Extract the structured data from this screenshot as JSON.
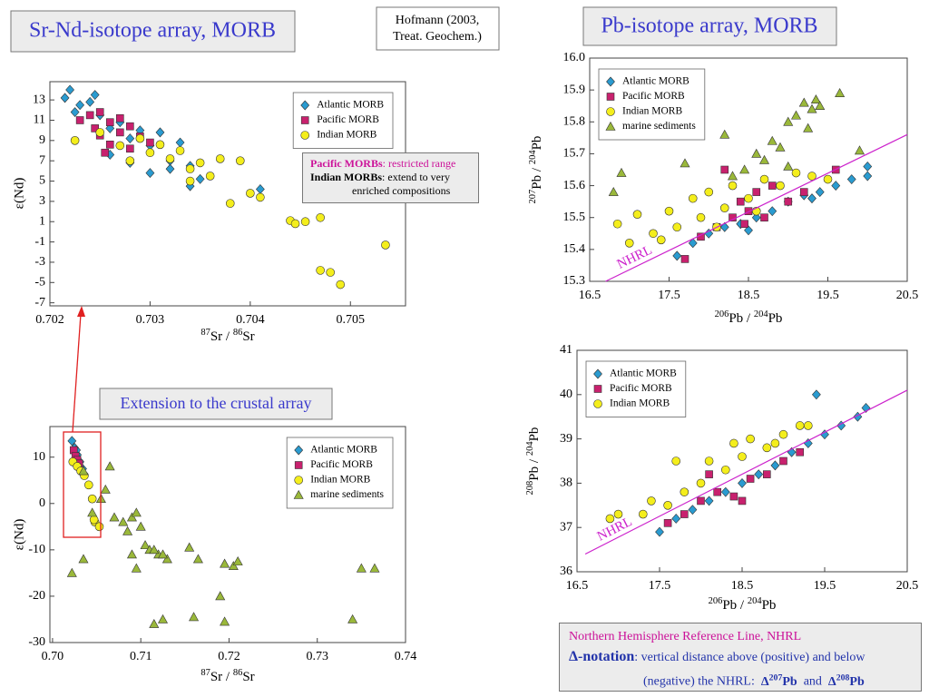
{
  "slide": {
    "title_left": "Sr-Nd-isotope array, MORB",
    "reference": [
      "Hofmann (2003,",
      "Treat. Geochem.)"
    ],
    "title_right": "Pb-isotope array, MORB",
    "crustal_title": "Extension to the crustal array",
    "annotation": {
      "pacific": [
        "Pacific MORBs",
        ": restricted range"
      ],
      "indian": [
        "Indian MORBs",
        ": extend to very",
        "enriched compositions"
      ]
    },
    "note": {
      "line1": "Northern Hemisphere Reference Line, NHRL",
      "delta": "Δ-notation",
      "line2": ": vertical distance above (positive) and below",
      "line3": "(negative) the NHRL:",
      "delta207": [
        "Δ",
        "207",
        "Pb"
      ],
      "and": "and",
      "delta208": [
        "Δ",
        "208",
        "Pb"
      ]
    }
  },
  "chart_data": [
    {
      "type": "scatter",
      "xlabel": [
        "87",
        "Sr / ",
        "86",
        "Sr"
      ],
      "ylabel": "ε(Nd)",
      "xlim": [
        0.702,
        0.70555
      ],
      "ylim": [
        -7.3,
        14.8
      ],
      "xticks": [
        0.702,
        0.703,
        0.704,
        0.705
      ],
      "yticks": [
        13,
        11,
        9,
        7,
        5,
        3,
        1,
        -1,
        -3,
        -5,
        -7
      ],
      "legend": "upper right",
      "series": [
        {
          "name": "Atlantic MORB",
          "color": "#2a9bd0",
          "marker": "diamond",
          "x": [
            0.70215,
            0.7022,
            0.7023,
            0.70225,
            0.7024,
            0.7025,
            0.7026,
            0.7027,
            0.7028,
            0.7029,
            0.703,
            0.7031,
            0.7032,
            0.7033,
            0.7034,
            0.7035,
            0.7026,
            0.7028,
            0.703,
            0.7032,
            0.7041,
            0.70245,
            0.7034
          ],
          "values": [
            13.2,
            14,
            12.5,
            11.8,
            12.8,
            11.5,
            10.2,
            10.8,
            9.2,
            10,
            8.5,
            9.8,
            7.0,
            8.8,
            6.5,
            5.2,
            7.6,
            6.8,
            5.8,
            6.2,
            4.2,
            13.5,
            4.5
          ]
        },
        {
          "name": "Pacific MORB",
          "color": "#c8216e",
          "marker": "square",
          "x": [
            0.7024,
            0.70245,
            0.7025,
            0.7025,
            0.7026,
            0.7026,
            0.7027,
            0.7027,
            0.7028,
            0.7028,
            0.7029,
            0.703,
            0.7023,
            0.70255
          ],
          "values": [
            11.5,
            10.2,
            11.8,
            9.5,
            10.8,
            8.6,
            11.2,
            9.8,
            10.4,
            8.2,
            9.4,
            8.8,
            11.0,
            7.8
          ]
        },
        {
          "name": "Indian MORB",
          "color": "#f4ee1c",
          "marker": "circle",
          "x": [
            0.70225,
            0.7025,
            0.7027,
            0.7029,
            0.703,
            0.7031,
            0.7032,
            0.7033,
            0.7034,
            0.7035,
            0.7036,
            0.7037,
            0.7038,
            0.7039,
            0.704,
            0.7041,
            0.7044,
            0.70445,
            0.70455,
            0.7047,
            0.7047,
            0.7048,
            0.7049,
            0.70535,
            0.7028,
            0.7034
          ],
          "values": [
            9.0,
            9.8,
            8.5,
            9.2,
            7.8,
            8.6,
            7.2,
            8.0,
            6.2,
            6.8,
            5.5,
            7.2,
            2.8,
            7.0,
            3.8,
            3.4,
            1.1,
            0.8,
            1.0,
            1.4,
            -3.8,
            -4.0,
            -5.2,
            -1.3,
            7.0,
            5.0
          ]
        }
      ]
    },
    {
      "type": "scatter",
      "xlabel": [
        "87",
        "Sr / ",
        "86",
        "Sr"
      ],
      "ylabel": "ε(Nd)",
      "xlim": [
        0.6997,
        0.74
      ],
      "ylim": [
        -30,
        16.6
      ],
      "xticks": [
        {
          "value": 0.7,
          "label": "0.70"
        },
        0.71,
        0.72,
        0.73,
        0.74
      ],
      "yticks": [
        10,
        0,
        -10,
        -20,
        -30
      ],
      "legend": "upper right",
      "series": [
        {
          "name": "Atlantic MORB",
          "color": "#2a9bd0",
          "marker": "diamond",
          "x": [
            0.7022,
            0.7025,
            0.7028,
            0.7031,
            0.7034,
            0.7027
          ],
          "values": [
            13.5,
            12.0,
            10.5,
            9.0,
            7.5,
            11.5
          ]
        },
        {
          "name": "Pacific MORB",
          "color": "#c8216e",
          "marker": "square",
          "x": [
            0.7024,
            0.7026,
            0.7028,
            0.703
          ],
          "values": [
            11.5,
            10.2,
            9.4,
            8.6
          ]
        },
        {
          "name": "Indian MORB",
          "color": "#f4ee1c",
          "marker": "circle",
          "x": [
            0.7023,
            0.7028,
            0.7032,
            0.7036,
            0.7041,
            0.7045,
            0.7048,
            0.7053,
            0.7047
          ],
          "values": [
            9,
            8,
            7,
            6,
            4,
            1,
            -4,
            -5,
            -3.5
          ]
        },
        {
          "name": "marine sediments",
          "color": "#9ab83a",
          "marker": "triangle",
          "x": [
            0.7022,
            0.7035,
            0.7045,
            0.706,
            0.7065,
            0.7055,
            0.707,
            0.708,
            0.709,
            0.7095,
            0.71,
            0.7085,
            0.7105,
            0.711,
            0.712,
            0.713,
            0.709,
            0.7095,
            0.7115,
            0.7125,
            0.7155,
            0.7165,
            0.7195,
            0.7205,
            0.721,
            0.719,
            0.7195,
            0.7115,
            0.7125,
            0.716,
            0.734,
            0.735,
            0.7365,
            0.7035
          ],
          "values": [
            -15,
            -12,
            -2,
            3,
            8,
            1,
            -3,
            -4,
            -3,
            -2,
            -5,
            -6,
            -9,
            -10,
            -11,
            -12,
            -11,
            -14,
            -10,
            -11,
            -9.5,
            -12,
            -13,
            -13.5,
            -12.5,
            -20,
            -25.5,
            -26,
            -25,
            -24.5,
            -25,
            -14,
            -14,
            7
          ]
        }
      ]
    },
    {
      "type": "scatter",
      "xlabel": [
        "206",
        "Pb / ",
        "204",
        "Pb"
      ],
      "ylabel": [
        "207",
        "Pb / ",
        "204",
        "Pb"
      ],
      "xlim": [
        16.5,
        20.5
      ],
      "ylim": [
        15.3,
        16.0
      ],
      "xticks": [
        16.5,
        17.5,
        18.5,
        19.5,
        20.5
      ],
      "yticks": [
        {
          "value": 16,
          "label": "16.0"
        },
        15.9,
        15.8,
        15.7,
        15.6,
        15.5,
        15.4,
        15.3
      ],
      "legend": "upper left",
      "reference_line": {
        "label": "NHRL",
        "color": "#cc22cc",
        "x": [
          16.7,
          20.5
        ],
        "values": [
          15.3,
          15.76
        ]
      },
      "series": [
        {
          "name": "Atlantic MORB",
          "color": "#2a9bd0",
          "marker": "diamond",
          "x": [
            17.6,
            17.8,
            18.0,
            18.2,
            18.4,
            18.6,
            18.8,
            19.0,
            19.2,
            19.4,
            19.6,
            19.8,
            20.0,
            20.0,
            18.5,
            19.3
          ],
          "values": [
            15.38,
            15.42,
            15.45,
            15.47,
            15.48,
            15.5,
            15.52,
            15.55,
            15.57,
            15.58,
            15.6,
            15.62,
            15.66,
            15.63,
            15.46,
            15.56
          ]
        },
        {
          "name": "Pacific MORB",
          "color": "#c8216e",
          "marker": "square",
          "x": [
            17.7,
            17.9,
            18.1,
            18.3,
            18.4,
            18.5,
            18.6,
            18.7,
            18.8,
            19.0,
            19.2,
            18.2,
            18.45,
            19.6
          ],
          "values": [
            15.37,
            15.44,
            15.47,
            15.5,
            15.55,
            15.52,
            15.58,
            15.5,
            15.6,
            15.55,
            15.58,
            15.65,
            15.48,
            15.65
          ]
        },
        {
          "name": "Indian MORB",
          "color": "#f4ee1c",
          "marker": "circle",
          "x": [
            16.85,
            17.0,
            17.1,
            17.3,
            17.5,
            17.6,
            17.8,
            17.9,
            18.0,
            18.2,
            18.3,
            18.5,
            18.7,
            18.9,
            19.1,
            19.3,
            19.5,
            17.4,
            18.1,
            18.6
          ],
          "values": [
            15.48,
            15.42,
            15.51,
            15.45,
            15.52,
            15.47,
            15.56,
            15.5,
            15.58,
            15.53,
            15.6,
            15.56,
            15.62,
            15.6,
            15.64,
            15.63,
            15.62,
            15.43,
            15.47,
            15.52
          ]
        },
        {
          "name": "marine sediments",
          "color": "#9ab83a",
          "marker": "triangle",
          "x": [
            16.8,
            16.9,
            17.7,
            18.2,
            18.45,
            18.6,
            18.7,
            18.8,
            18.9,
            19.0,
            19.1,
            19.2,
            19.25,
            19.3,
            19.35,
            19.4,
            19.65,
            19.9,
            19.0,
            18.3
          ],
          "values": [
            15.58,
            15.64,
            15.67,
            15.76,
            15.65,
            15.7,
            15.68,
            15.74,
            15.72,
            15.8,
            15.82,
            15.86,
            15.78,
            15.84,
            15.87,
            15.85,
            15.89,
            15.71,
            15.66,
            15.63
          ]
        }
      ]
    },
    {
      "type": "scatter",
      "xlabel": [
        "206",
        "Pb / ",
        "204",
        "Pb"
      ],
      "ylabel": [
        "208",
        "Pb / ",
        "204",
        "Pb"
      ],
      "xlim": [
        16.5,
        20.5
      ],
      "ylim": [
        36,
        41
      ],
      "xticks": [
        16.5,
        17.5,
        18.5,
        19.5,
        20.5
      ],
      "yticks": [
        41,
        40,
        39,
        38,
        37,
        36
      ],
      "legend": "upper left",
      "reference_line": {
        "label": "NHRL",
        "color": "#cc22cc",
        "x": [
          16.6,
          20.5
        ],
        "values": [
          36.4,
          40.1
        ]
      },
      "series": [
        {
          "name": "Atlantic MORB",
          "color": "#2a9bd0",
          "marker": "diamond",
          "x": [
            17.5,
            17.7,
            17.9,
            18.1,
            18.3,
            18.5,
            18.7,
            18.9,
            19.1,
            19.3,
            19.5,
            19.7,
            19.9,
            20.0,
            19.4
          ],
          "values": [
            36.9,
            37.2,
            37.4,
            37.6,
            37.8,
            38.0,
            38.2,
            38.4,
            38.7,
            38.9,
            39.1,
            39.3,
            39.5,
            39.7,
            40.0
          ]
        },
        {
          "name": "Pacific MORB",
          "color": "#c8216e",
          "marker": "square",
          "x": [
            17.6,
            17.8,
            18.0,
            18.2,
            18.4,
            18.6,
            18.8,
            19.0,
            19.2,
            18.1,
            18.5
          ],
          "values": [
            37.1,
            37.3,
            37.6,
            37.8,
            37.7,
            38.1,
            38.2,
            38.5,
            38.7,
            38.2,
            37.6
          ]
        },
        {
          "name": "Indian MORB",
          "color": "#f4ee1c",
          "marker": "circle",
          "x": [
            16.9,
            17.0,
            17.3,
            17.4,
            17.6,
            17.8,
            18.0,
            18.1,
            18.3,
            18.4,
            18.5,
            18.6,
            18.8,
            19.0,
            19.2,
            19.3,
            17.7,
            18.9
          ],
          "values": [
            37.2,
            37.3,
            37.3,
            37.6,
            37.5,
            37.8,
            38.0,
            38.5,
            38.3,
            38.9,
            38.6,
            39.0,
            38.8,
            39.1,
            39.3,
            39.3,
            38.5,
            38.9
          ]
        }
      ]
    }
  ]
}
